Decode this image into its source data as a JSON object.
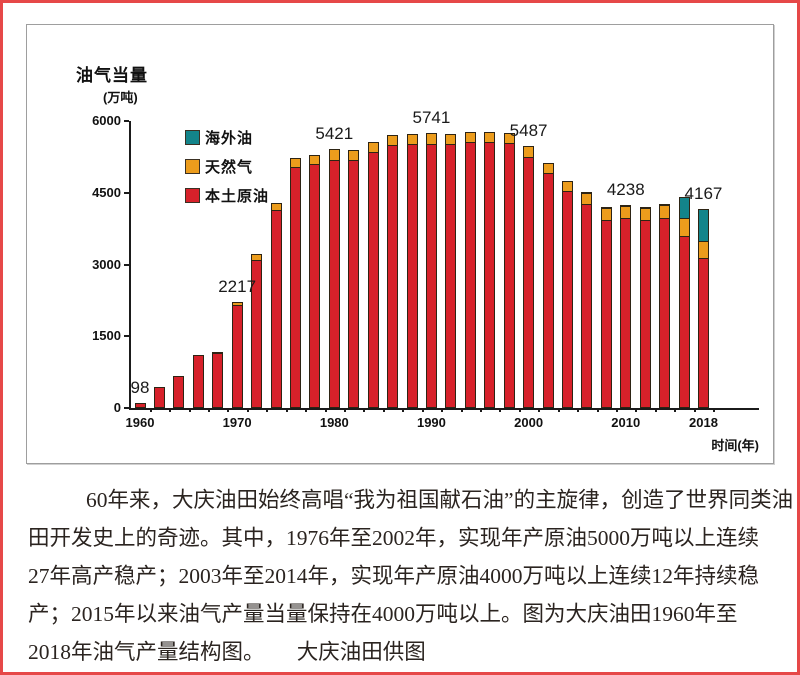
{
  "chart": {
    "title": "油气当量",
    "unit": "(万吨)",
    "x_axis_title": "时间(年)",
    "y_ticks": [
      {
        "label": "6000",
        "value": 6000
      },
      {
        "label": "4500",
        "value": 4500
      },
      {
        "label": "3000",
        "value": 3000
      },
      {
        "label": "1500",
        "value": 1500
      },
      {
        "label": "0",
        "value": 0
      }
    ],
    "legend": [
      {
        "label": "海外油",
        "color": "#13848a"
      },
      {
        "label": "天然气",
        "color": "#ec9c1c"
      },
      {
        "label": "本土原油",
        "color": "#d7212a"
      }
    ]
  },
  "chart_data": {
    "type": "bar",
    "stacked": true,
    "title": "油气当量(万吨)",
    "xlabel": "时间(年)",
    "ylabel": "油气当量(万吨)",
    "ylim": [
      0,
      6000
    ],
    "grid": false,
    "legend_position": "upper-left",
    "x": [
      1960,
      1962,
      1964,
      1966,
      1968,
      1970,
      1972,
      1974,
      1976,
      1978,
      1980,
      1982,
      1984,
      1986,
      1988,
      1990,
      1992,
      1994,
      1996,
      1998,
      2000,
      2002,
      2004,
      2006,
      2008,
      2010,
      2012,
      2014,
      2016,
      2018
    ],
    "series": [
      {
        "name": "本土原油",
        "color": "#d7212a",
        "values": [
          98,
          440,
          660,
          1100,
          1120,
          2130,
          3060,
          4120,
          5020,
          5080,
          5180,
          5180,
          5330,
          5460,
          5490,
          5500,
          5490,
          5540,
          5540,
          5500,
          5240,
          4900,
          4510,
          4250,
          3930,
          3940,
          3910,
          3950,
          3580,
          3130
        ]
      },
      {
        "name": "天然气",
        "color": "#ec9c1c",
        "values": [
          0,
          0,
          0,
          0,
          45,
          87,
          150,
          160,
          200,
          210,
          241,
          220,
          230,
          240,
          240,
          241,
          240,
          240,
          240,
          240,
          247,
          230,
          230,
          240,
          250,
          258,
          260,
          260,
          360,
          340
        ]
      },
      {
        "name": "海外油",
        "color": "#13848a",
        "values": [
          0,
          0,
          0,
          0,
          0,
          0,
          0,
          0,
          0,
          0,
          0,
          0,
          0,
          0,
          0,
          0,
          0,
          0,
          0,
          0,
          0,
          0,
          0,
          20,
          30,
          40,
          40,
          45,
          465,
          697
        ]
      }
    ],
    "annotations": [
      {
        "year": 1960,
        "text": "98"
      },
      {
        "year": 1970,
        "text": "2217"
      },
      {
        "year": 1980,
        "text": "5421"
      },
      {
        "year": 1990,
        "text": "5741"
      },
      {
        "year": 2000,
        "text": "5487"
      },
      {
        "year": 2010,
        "text": "4238"
      },
      {
        "year": 2018,
        "text": "4167"
      }
    ],
    "x_tick_labels": [
      {
        "year": 1960,
        "label": "1960"
      },
      {
        "year": 1970,
        "label": "1970"
      },
      {
        "year": 1980,
        "label": "1980"
      },
      {
        "year": 1990,
        "label": "1990"
      },
      {
        "year": 2000,
        "label": "2000"
      },
      {
        "year": 2010,
        "label": "2010"
      },
      {
        "year": 2018,
        "label": "2018"
      }
    ]
  },
  "caption": {
    "lines": [
      "60年来，大庆油田始终高唱“我为祖国献石油”的主旋律，创造了世界同类油",
      "田开发史上的奇迹。其中，1976年至2002年，实现年产原油5000万吨以上连续",
      "27年高产稳产；2003年至2014年，实现年产原油4000万吨以上连续12年持续稳",
      "产；2015年以来油气产量当量保持在4000万吨以上。图为大庆油田1960年至",
      "2018年油气产量结构图。　　大庆油田供图"
    ]
  }
}
